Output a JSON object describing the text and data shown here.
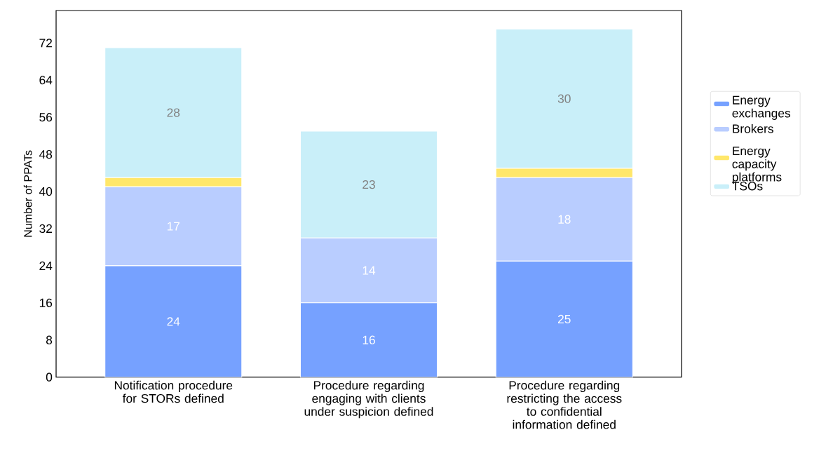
{
  "chart_data": {
    "type": "bar",
    "stacked": true,
    "ylabel": "Number of PPATs",
    "categories": [
      "Notification procedure for STORs defined",
      "Procedure regarding engaging with clients under suspicion defined",
      "Procedure regarding restricting the access to confidential information defined"
    ],
    "series": [
      {
        "name": "Energy exchanges",
        "color": "#76a1ff",
        "values": [
          24,
          16,
          25
        ],
        "value_labels": [
          "24",
          "16",
          "25"
        ]
      },
      {
        "name": "Brokers",
        "color": "#b9cdff",
        "values": [
          17,
          14,
          18
        ],
        "value_labels": [
          "17",
          "14",
          "18"
        ]
      },
      {
        "name": "Energy capacity platforms",
        "color": "#ffe76a",
        "values": [
          2,
          0,
          2
        ]
      },
      {
        "name": "TSOs",
        "color": "#c9eff9",
        "values": [
          28,
          23,
          30
        ],
        "value_labels": [
          "28",
          "23",
          "30"
        ]
      }
    ],
    "ylim": [
      0,
      79
    ],
    "yticks": [
      0,
      8,
      16,
      24,
      32,
      40,
      48,
      56,
      64,
      72
    ],
    "legend": "right"
  }
}
